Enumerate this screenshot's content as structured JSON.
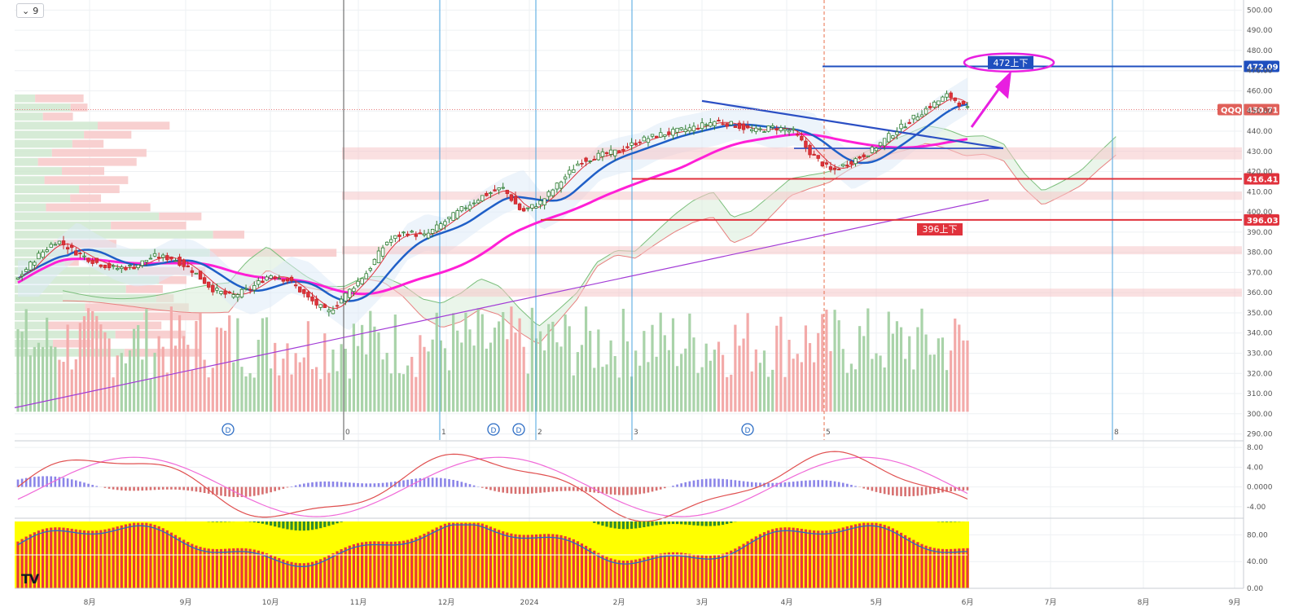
{
  "toolbar": {
    "collapse_icon": "chevron-down-icon",
    "series_count": "9"
  },
  "logo": "TV",
  "main": {
    "symbol": "QQQ",
    "last_price": "450.71",
    "y_ticks": [
      "500.00",
      "490.00",
      "480.00",
      "470.00",
      "460.00",
      "450.00",
      "440.00",
      "430.00",
      "420.00",
      "410.00",
      "400.00",
      "390.00",
      "380.00",
      "370.00",
      "360.00",
      "350.00",
      "340.00",
      "330.00",
      "320.00",
      "310.00",
      "300.00",
      "290.00"
    ],
    "levels": [
      {
        "name": "level-472",
        "value": 472.09,
        "label": "472.09",
        "color": "#1f4fbf"
      },
      {
        "name": "level-416",
        "value": 416.41,
        "label": "416.41",
        "color": "#e0323c"
      },
      {
        "name": "level-396",
        "value": 396.03,
        "label": "396.03",
        "color": "#e0323c"
      }
    ],
    "annotations": {
      "target_label": "472上下",
      "support_label": "396上下"
    },
    "event_markers": [
      "D",
      "D",
      "D",
      "D"
    ],
    "period_markers": [
      "0",
      "1",
      "2",
      "3",
      "5",
      "8"
    ]
  },
  "macd": {
    "y_ticks": [
      "8.00",
      "4.00",
      "0.0000",
      "-4.00"
    ]
  },
  "stoch": {
    "y_ticks": [
      "80.00",
      "40.00",
      "0.00"
    ]
  },
  "x_ticks": [
    "8月",
    "9月",
    "10月",
    "11月",
    "12月",
    "2024",
    "2月",
    "3月",
    "4月",
    "5月",
    "6月",
    "7月",
    "8月",
    "9月"
  ],
  "colors": {
    "up": "#5cae5c",
    "down": "#e0323c",
    "ma_fast": "#e0323c",
    "ma_mid": "#1f5fc7",
    "ma_slow": "#ff1fd6",
    "trend": "#a23bd6",
    "vol_up": "#a9d3a9",
    "vol_down": "#f3aaa9",
    "macd_pos": "#8b85e8",
    "macd_neg": "#d77070",
    "stoch_fill": "#ffff00",
    "stoch_red": "#e8363a",
    "stoch_green": "#2e8b2e"
  },
  "chart_data": {
    "type": "line",
    "title": "",
    "xlabel": "",
    "ylabel": "",
    "series": [
      {
        "name": "QQQ",
        "values": [
          367,
          378,
          386,
          380,
          375,
          372,
          373,
          378,
          377,
          371,
          362,
          358,
          362,
          369,
          366,
          357,
          350,
          360,
          370,
          385,
          390,
          388,
          395,
          402,
          408,
          412,
          400,
          405,
          415,
          425,
          428,
          430,
          435,
          438,
          440,
          442,
          445,
          443,
          440,
          442,
          440,
          428,
          420,
          425,
          430,
          438,
          445,
          452,
          458,
          450.71
        ]
      }
    ],
    "x": [
      "2023-07-15",
      "2023-07-25",
      "2023-08-01",
      "2023-08-08",
      "2023-08-15",
      "2023-08-22",
      "2023-08-29",
      "2023-09-05",
      "2023-09-12",
      "2023-09-19",
      "2023-09-26",
      "2023-10-03",
      "2023-10-10",
      "2023-10-17",
      "2023-10-24",
      "2023-10-31",
      "2023-11-07",
      "2023-11-14",
      "2023-11-21",
      "2023-11-28",
      "2023-12-05",
      "2023-12-12",
      "2023-12-19",
      "2023-12-27",
      "2024-01-03",
      "2024-01-10",
      "2024-01-17",
      "2024-01-24",
      "2024-01-31",
      "2024-02-07",
      "2024-02-14",
      "2024-02-21",
      "2024-02-28",
      "2024-03-06",
      "2024-03-13",
      "2024-03-20",
      "2024-03-27",
      "2024-04-03",
      "2024-04-10",
      "2024-04-12",
      "2024-04-17",
      "2024-04-19",
      "2024-04-24",
      "2024-05-01",
      "2024-05-08",
      "2024-05-15",
      "2024-05-22",
      "2024-05-24",
      "2024-05-29",
      "2024-05-31"
    ],
    "ylim": [
      290,
      505
    ],
    "grid": true
  }
}
